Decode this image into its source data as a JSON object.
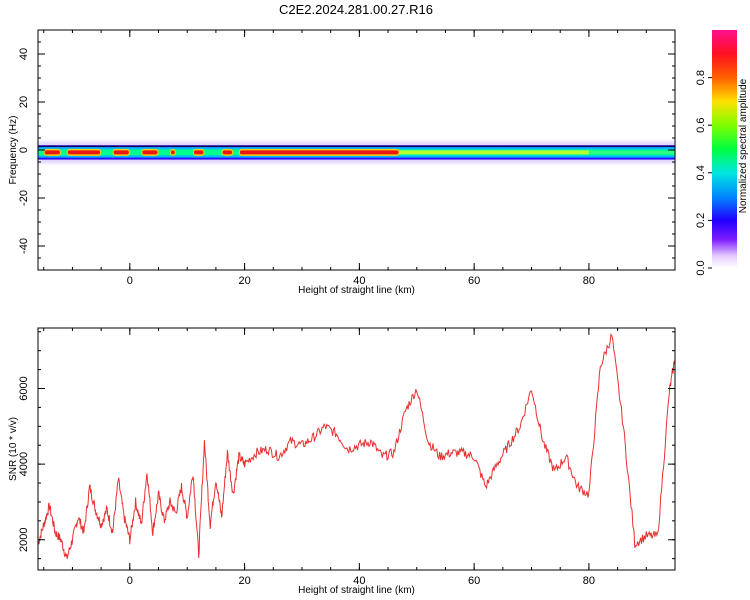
{
  "title": "C2E2.2024.281.00.27.R16",
  "chart_data": [
    {
      "type": "heatmap",
      "xlabel": "Height of straight line (km)",
      "ylabel": "Frequency (Hz)",
      "xlim": [
        -16,
        95
      ],
      "ylim": [
        -50,
        50
      ],
      "xticks": [
        0,
        20,
        40,
        60,
        80
      ],
      "yticks": [
        -40,
        -20,
        0,
        20,
        40
      ],
      "colorbar": {
        "label": "Normalized spectral amplitude",
        "range": [
          0,
          1
        ],
        "ticks": [
          0.0,
          0.2,
          0.4,
          0.6,
          0.8
        ]
      },
      "band": {
        "center_frequency": -1,
        "half_width": 3,
        "strong_ranges": [
          [
            -15,
            -12
          ],
          [
            -11,
            -5
          ],
          [
            -3,
            0
          ],
          [
            2,
            5
          ],
          [
            7,
            8
          ],
          [
            11,
            13
          ],
          [
            16,
            18
          ],
          [
            19,
            47
          ]
        ],
        "medium_ranges": [
          [
            47,
            65
          ],
          [
            65,
            80
          ]
        ],
        "fading_ranges": [
          [
            80,
            95
          ]
        ]
      }
    },
    {
      "type": "line",
      "xlabel": "Height of straight line (km)",
      "ylabel": "SNR (10 * v/v)",
      "xlim": [
        -16,
        95
      ],
      "ylim": [
        1200,
        7600
      ],
      "xticks": [
        0,
        20,
        40,
        60,
        80
      ],
      "yticks": [
        2000,
        4000,
        6000
      ],
      "color": "#e83030",
      "series": [
        {
          "x": [
            -16,
            -15,
            -14,
            -13,
            -12,
            -11,
            -10,
            -9,
            -8,
            -7,
            -6,
            -5,
            -4,
            -3,
            -2,
            -1,
            0,
            1,
            2,
            3,
            4,
            5,
            6,
            7,
            8,
            9,
            10,
            11,
            12,
            13,
            14,
            15,
            16,
            17,
            18,
            19,
            20,
            22,
            24,
            26,
            28,
            30,
            32,
            34,
            36,
            38,
            40,
            42,
            44,
            46,
            48,
            50,
            52,
            54,
            56,
            58,
            60,
            62,
            64,
            66,
            68,
            70,
            72,
            74,
            76,
            78,
            80,
            82,
            84,
            86,
            88,
            90,
            92,
            94,
            95
          ],
          "y": [
            1900,
            2400,
            2900,
            2200,
            2000,
            1500,
            2000,
            2600,
            2200,
            3400,
            2800,
            2400,
            2800,
            2200,
            3600,
            2600,
            2000,
            3000,
            2400,
            3800,
            2200,
            3200,
            2500,
            3000,
            2700,
            3400,
            2600,
            3800,
            1600,
            4600,
            2400,
            3600,
            2600,
            4300,
            3200,
            4200,
            4000,
            4300,
            4400,
            4200,
            4600,
            4500,
            4700,
            5000,
            4800,
            4400,
            4500,
            4600,
            4200,
            4300,
            5400,
            6000,
            4600,
            4200,
            4300,
            4300,
            4200,
            3400,
            4000,
            4500,
            5000,
            6000,
            4600,
            3800,
            4200,
            3400,
            3200,
            6600,
            7400,
            5000,
            1900,
            2100,
            2100,
            5900,
            6800
          ]
        }
      ]
    }
  ]
}
